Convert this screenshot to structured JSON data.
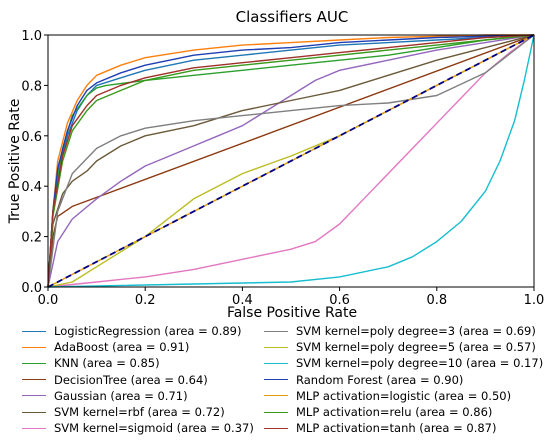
{
  "chart_data": {
    "type": "line",
    "title": "Classifiers AUC",
    "xlabel": "False Positive Rate",
    "ylabel": "True Positive Rate",
    "xlim": [
      0,
      1
    ],
    "ylim": [
      0,
      1
    ],
    "xticks": [
      "0.0",
      "0.2",
      "0.4",
      "0.6",
      "0.8",
      "1.0"
    ],
    "yticks": [
      "0.0",
      "0.2",
      "0.4",
      "0.6",
      "0.8",
      "1.0"
    ],
    "grid": false,
    "legend_position": "below",
    "reference_line": {
      "x": [
        0,
        1
      ],
      "y": [
        0,
        1
      ],
      "color": "#000080",
      "style": "dashed"
    },
    "series": [
      {
        "name": "LogisticRegression (area = 0.89)",
        "color": "#1f77b4",
        "x": [
          0,
          0.01,
          0.02,
          0.04,
          0.06,
          0.08,
          0.1,
          0.15,
          0.2,
          0.3,
          0.4,
          0.5,
          0.6,
          0.7,
          0.8,
          0.9,
          1.0
        ],
        "y": [
          0,
          0.3,
          0.45,
          0.6,
          0.7,
          0.76,
          0.8,
          0.83,
          0.86,
          0.9,
          0.92,
          0.94,
          0.96,
          0.97,
          0.98,
          0.99,
          1.0
        ]
      },
      {
        "name": "AdaBoost (area = 0.91)",
        "color": "#ff7f0e",
        "x": [
          0,
          0.01,
          0.02,
          0.04,
          0.06,
          0.08,
          0.1,
          0.15,
          0.2,
          0.3,
          0.4,
          0.5,
          0.6,
          0.7,
          0.8,
          0.9,
          1.0
        ],
        "y": [
          0,
          0.3,
          0.5,
          0.65,
          0.74,
          0.8,
          0.84,
          0.88,
          0.91,
          0.94,
          0.96,
          0.97,
          0.98,
          0.99,
          0.995,
          1.0,
          1.0
        ]
      },
      {
        "name": "KNN (area = 0.85)",
        "color": "#2ca02c",
        "x": [
          0,
          0.01,
          0.03,
          0.05,
          0.08,
          0.1,
          0.12,
          0.2,
          0.3,
          0.4,
          0.5,
          0.6,
          0.7,
          0.8,
          0.9,
          1.0
        ],
        "y": [
          0,
          0.3,
          0.55,
          0.68,
          0.76,
          0.79,
          0.8,
          0.82,
          0.84,
          0.86,
          0.88,
          0.9,
          0.92,
          0.95,
          0.98,
          1.0
        ]
      },
      {
        "name": "DecisionTree (area = 0.64)",
        "color": "#8c3a12",
        "x": [
          0,
          0.01,
          0.02,
          0.05,
          1.0
        ],
        "y": [
          0,
          0.2,
          0.28,
          0.32,
          1.0
        ]
      },
      {
        "name": "Gaussian (area = 0.71)",
        "color": "#9467bd",
        "x": [
          0,
          0.02,
          0.05,
          0.1,
          0.15,
          0.2,
          0.25,
          0.3,
          0.35,
          0.4,
          0.45,
          0.5,
          0.55,
          0.6,
          0.7,
          0.8,
          0.9,
          1.0
        ],
        "y": [
          0,
          0.18,
          0.27,
          0.35,
          0.42,
          0.48,
          0.52,
          0.56,
          0.6,
          0.64,
          0.7,
          0.76,
          0.82,
          0.86,
          0.9,
          0.94,
          0.97,
          1.0
        ]
      },
      {
        "name": "SVM kernel=rbf  (area = 0.72)",
        "color": "#6b5a3a",
        "x": [
          0,
          0.01,
          0.03,
          0.05,
          0.08,
          0.1,
          0.15,
          0.2,
          0.3,
          0.4,
          0.5,
          0.6,
          0.7,
          0.8,
          0.9,
          1.0
        ],
        "y": [
          0,
          0.25,
          0.37,
          0.42,
          0.46,
          0.5,
          0.56,
          0.6,
          0.64,
          0.7,
          0.74,
          0.78,
          0.84,
          0.9,
          0.95,
          1.0
        ]
      },
      {
        "name": "SVM kernel=sigmoid  (area = 0.37)",
        "color": "#e377c2",
        "x": [
          0,
          0.05,
          0.1,
          0.2,
          0.3,
          0.4,
          0.5,
          0.55,
          0.6,
          0.65,
          0.7,
          0.75,
          0.8,
          0.85,
          0.9,
          0.95,
          1.0
        ],
        "y": [
          0,
          0.01,
          0.02,
          0.04,
          0.07,
          0.11,
          0.15,
          0.18,
          0.25,
          0.35,
          0.45,
          0.55,
          0.65,
          0.75,
          0.85,
          0.93,
          1.0
        ]
      },
      {
        "name": "SVM kernel=poly degree=3 (area = 0.69)",
        "color": "#7f7f7f",
        "x": [
          0,
          0.02,
          0.05,
          0.1,
          0.15,
          0.2,
          0.3,
          0.4,
          0.5,
          0.6,
          0.7,
          0.8,
          0.9,
          1.0
        ],
        "y": [
          0,
          0.3,
          0.45,
          0.55,
          0.6,
          0.63,
          0.66,
          0.68,
          0.7,
          0.72,
          0.73,
          0.76,
          0.85,
          1.0
        ]
      },
      {
        "name": "SVM kernel=poly degree=5 (area = 0.57)",
        "color": "#bcbd22",
        "x": [
          0,
          0.05,
          0.1,
          0.2,
          0.3,
          0.4,
          0.5,
          0.6,
          0.7,
          0.8,
          0.9,
          1.0
        ],
        "y": [
          0,
          0.02,
          0.08,
          0.2,
          0.35,
          0.45,
          0.52,
          0.6,
          0.7,
          0.8,
          0.9,
          1.0
        ]
      },
      {
        "name": "SVM kernel=poly degree=10 (area = 0.17)",
        "color": "#17becf",
        "x": [
          0,
          0.5,
          0.6,
          0.7,
          0.75,
          0.8,
          0.85,
          0.9,
          0.93,
          0.96,
          0.98,
          1.0
        ],
        "y": [
          0,
          0.02,
          0.04,
          0.08,
          0.12,
          0.18,
          0.26,
          0.38,
          0.5,
          0.66,
          0.82,
          1.0
        ]
      },
      {
        "name": "Random Forest (area = 0.90)",
        "color": "#1f3fb4",
        "x": [
          0,
          0.01,
          0.02,
          0.04,
          0.06,
          0.08,
          0.1,
          0.15,
          0.2,
          0.3,
          0.4,
          0.5,
          0.6,
          0.7,
          0.8,
          0.9,
          1.0
        ],
        "y": [
          0,
          0.3,
          0.47,
          0.62,
          0.72,
          0.78,
          0.81,
          0.85,
          0.88,
          0.92,
          0.94,
          0.95,
          0.97,
          0.98,
          0.99,
          0.995,
          1.0
        ]
      },
      {
        "name": "MLP activation=logistic (area = 0.50)",
        "color": "#e69a10",
        "x": [
          0,
          1.0
        ],
        "y": [
          0,
          1.0
        ]
      },
      {
        "name": "MLP activation=relu (area = 0.86)",
        "color": "#3a9a1a",
        "x": [
          0,
          0.01,
          0.03,
          0.05,
          0.08,
          0.1,
          0.15,
          0.2,
          0.3,
          0.4,
          0.5,
          0.6,
          0.7,
          0.8,
          0.9,
          1.0
        ],
        "y": [
          0,
          0.28,
          0.5,
          0.62,
          0.7,
          0.74,
          0.78,
          0.82,
          0.86,
          0.88,
          0.9,
          0.92,
          0.94,
          0.96,
          0.98,
          1.0
        ]
      },
      {
        "name": "MLP activation=tanh (area = 0.87)",
        "color": "#a0302a",
        "x": [
          0,
          0.01,
          0.03,
          0.05,
          0.08,
          0.1,
          0.15,
          0.2,
          0.3,
          0.4,
          0.5,
          0.6,
          0.7,
          0.8,
          0.9,
          1.0
        ],
        "y": [
          0,
          0.3,
          0.52,
          0.64,
          0.72,
          0.76,
          0.8,
          0.83,
          0.87,
          0.89,
          0.91,
          0.93,
          0.95,
          0.97,
          0.99,
          1.0
        ]
      }
    ]
  }
}
